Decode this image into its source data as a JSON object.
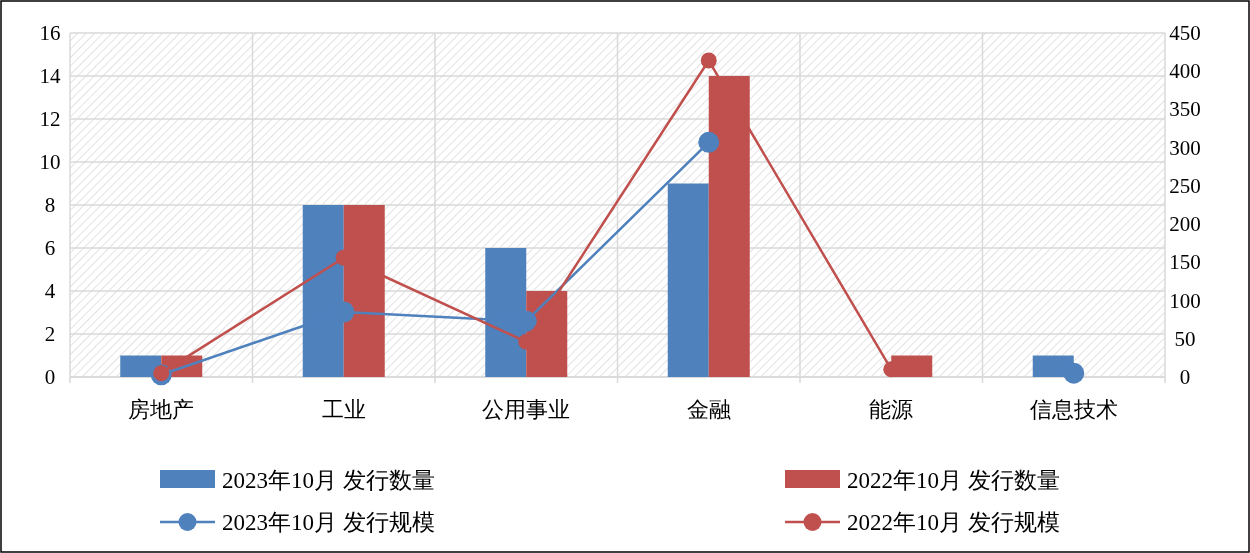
{
  "chart_data": {
    "type": "bar",
    "categories": [
      "房地产",
      "工业",
      "公用事业",
      "金融",
      "能源",
      "信息技术"
    ],
    "series": [
      {
        "name": "2023年10月 发行数量",
        "color": "#4f81bd",
        "values": [
          1,
          8,
          6,
          9,
          0,
          1
        ]
      },
      {
        "name": "2022年10月 发行数量",
        "color": "#c0504d",
        "values": [
          1,
          8,
          4,
          14,
          1,
          0
        ]
      },
      {
        "name": "2023年10月 发行规模",
        "color": "#4f81bd",
        "type": "line",
        "axis": "y2",
        "values": [
          3,
          85,
          73,
          307,
          null,
          5
        ]
      },
      {
        "name": "2022年10月 发行规模",
        "color": "#c0504d",
        "type": "line",
        "axis": "y2",
        "values": [
          5,
          156,
          46,
          414,
          10,
          null
        ]
      }
    ],
    "ylim": [
      0,
      16
    ],
    "yticks": [
      0,
      2,
      4,
      6,
      8,
      10,
      12,
      14,
      16
    ],
    "y2lim": [
      0,
      450
    ],
    "y2ticks": [
      0,
      50,
      100,
      150,
      200,
      250,
      300,
      350,
      400,
      450
    ],
    "grid": true,
    "legend": "bottom",
    "marker": "circle",
    "line_style": "solid"
  }
}
